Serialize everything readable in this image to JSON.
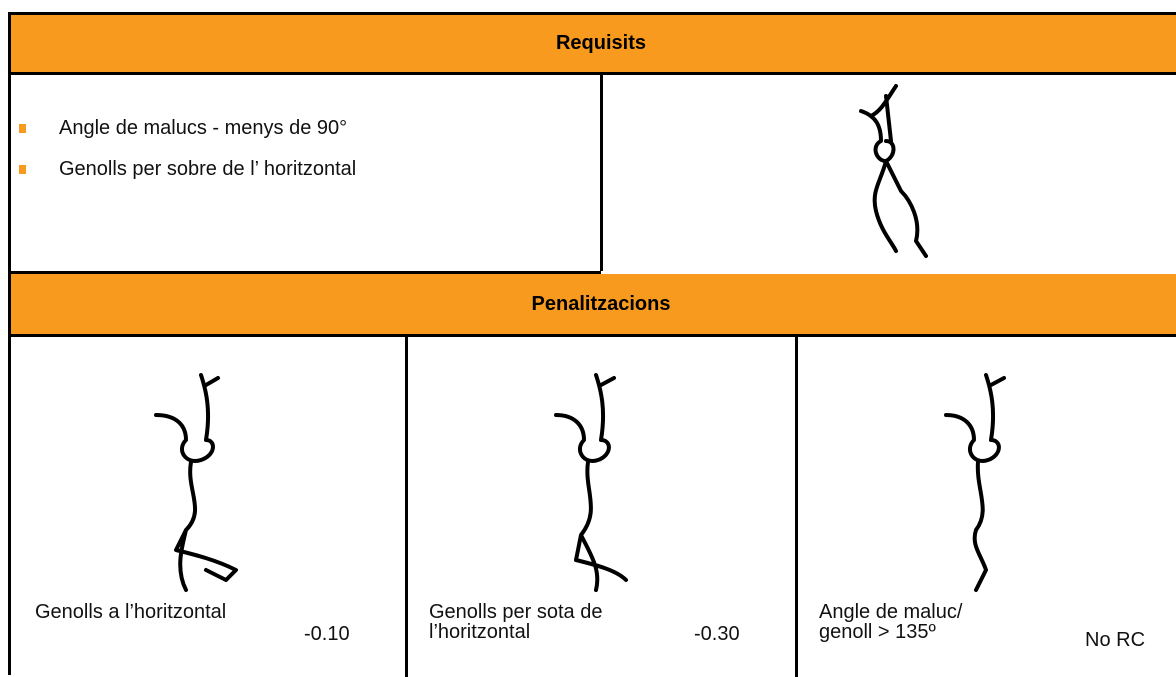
{
  "requirements": {
    "title": "Requisits",
    "items": [
      "Angle de malucs - menys de 90°",
      "Genolls per sobre de l’ horitzontal"
    ]
  },
  "penalties": {
    "title": "Penalitzacions",
    "rows": [
      {
        "label": "Genolls a l’horitzontal",
        "deduction": "-0.10"
      },
      {
        "label": "Genolls per sota de l’horitzontal",
        "deduction": "-0.30"
      },
      {
        "label": "Angle de maluc/ genoll  > 135º",
        "deduction": "No RC"
      }
    ]
  }
}
